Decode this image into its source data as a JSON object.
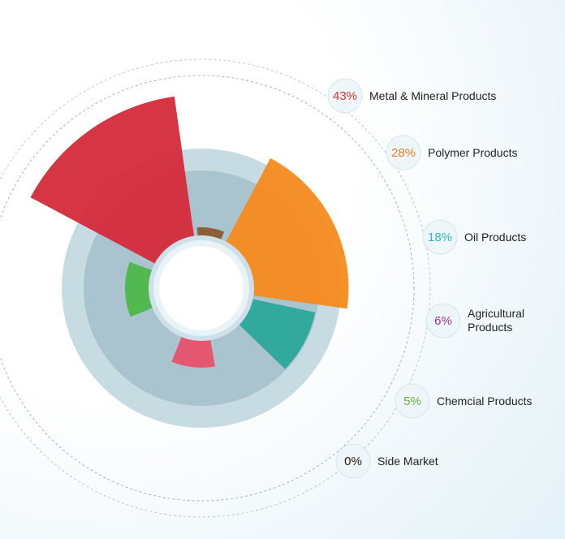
{
  "chart_data": {
    "type": "rose",
    "categories": [
      "Metal & Mineral Products",
      "Polymer Products",
      "Oil Products",
      "Agricultural Products",
      "Chemcial Products",
      "Side Market"
    ],
    "values": [
      43,
      28,
      18,
      6,
      5,
      0
    ],
    "value_labels": [
      "43%",
      "28%",
      "18%",
      "6%",
      "5%",
      "0%"
    ],
    "colors": [
      "#d42a3a",
      "#f68a1e",
      "#2aa89a",
      "#e8506a",
      "#4cb848",
      "#8a5a2e"
    ],
    "label_colors": [
      "#d7342b",
      "#f07c22",
      "#36b3c4",
      "#9b3a8e",
      "#6ab23c",
      "#2a1a10"
    ]
  }
}
